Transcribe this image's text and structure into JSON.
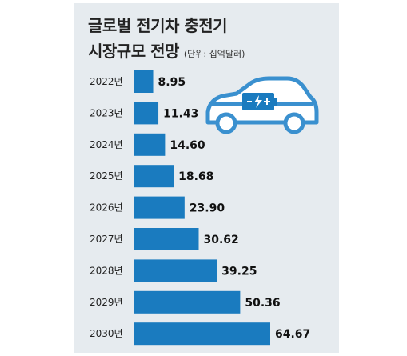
{
  "title_line1": "글로벌 전기차 충전기",
  "title_line2": "시장규모 전망",
  "unit_note": "(단위: 십억달러)",
  "colors": {
    "panel": "#e6ebef",
    "bar": "#1a7bbf",
    "car_outline": "#3a90cf",
    "battery": "#1a7bbf"
  },
  "car_icon": "electric-car-icon",
  "chart_data": {
    "type": "bar",
    "orientation": "horizontal",
    "title": "글로벌 전기차 충전기 시장규모 전망",
    "unit": "(단위: 십억달러)",
    "categories": [
      "2022년",
      "2023년",
      "2024년",
      "2025년",
      "2026년",
      "2027년",
      "2028년",
      "2029년",
      "2030년"
    ],
    "values": [
      8.95,
      11.43,
      14.6,
      18.68,
      23.9,
      30.62,
      39.25,
      50.36,
      64.67
    ],
    "value_labels": [
      "8.95",
      "11.43",
      "14.60",
      "18.68",
      "23.90",
      "30.62",
      "39.25",
      "50.36",
      "64.67"
    ],
    "xlim": [
      0,
      64.67
    ]
  }
}
